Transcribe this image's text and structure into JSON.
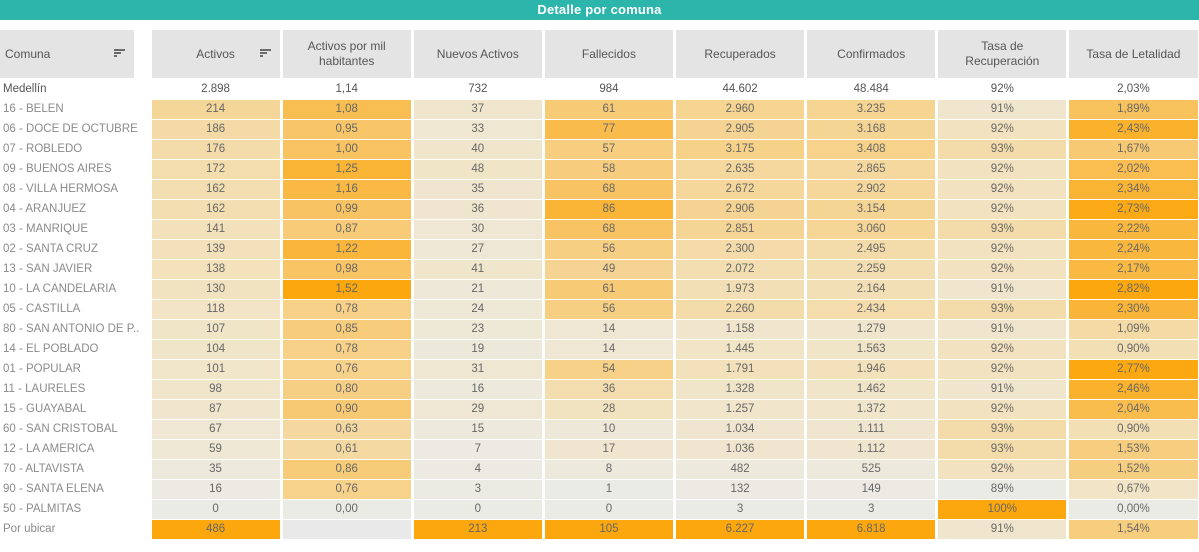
{
  "title": "Detalle por comuna",
  "colors": {
    "title_bg": "#2cb6ab",
    "title_text": "#ffffff",
    "header_bg": "#e4e4e4",
    "header_text": "#565656",
    "label_text": "#8b8b8b",
    "value_text": "#676767",
    "heat_low": "#ebebe6",
    "heat_mid": "#f6d28b",
    "heat_high": "#fba70d",
    "blank_cell": "#e9e9e9"
  },
  "table": {
    "columns": [
      {
        "label": "Comuna",
        "sortable": true
      },
      {
        "label": "Activos",
        "sortable": true
      },
      {
        "label": "Activos por mil habitantes",
        "sortable": false
      },
      {
        "label": "Nuevos Activos",
        "sortable": false
      },
      {
        "label": "Fallecidos",
        "sortable": false
      },
      {
        "label": "Recuperados",
        "sortable": false
      },
      {
        "label": "Confirmados",
        "sortable": false
      },
      {
        "label": "Tasa de Recuperación",
        "sortable": false
      },
      {
        "label": "Tasa de Letalidad",
        "sortable": false
      }
    ],
    "total_row": {
      "label": "Medellín",
      "cells": [
        "2.898",
        "1,14",
        "732",
        "984",
        "44.602",
        "48.484",
        "92%",
        "2,03%"
      ]
    },
    "rows": [
      {
        "label": "16 - BELEN",
        "cells": [
          "214",
          "1,08",
          "37",
          "61",
          "2.960",
          "3.235",
          "91%",
          "1,89%"
        ]
      },
      {
        "label": "06 - DOCE DE OCTUBRE",
        "cells": [
          "186",
          "0,95",
          "33",
          "77",
          "2.905",
          "3.168",
          "92%",
          "2,43%"
        ]
      },
      {
        "label": "07 - ROBLEDO",
        "cells": [
          "176",
          "1,00",
          "40",
          "57",
          "3.175",
          "3.408",
          "93%",
          "1,67%"
        ]
      },
      {
        "label": "09 - BUENOS AIRES",
        "cells": [
          "172",
          "1,25",
          "48",
          "58",
          "2.635",
          "2.865",
          "92%",
          "2,02%"
        ]
      },
      {
        "label": "08 - VILLA HERMOSA",
        "cells": [
          "162",
          "1,16",
          "35",
          "68",
          "2.672",
          "2.902",
          "92%",
          "2,34%"
        ]
      },
      {
        "label": "04 - ARANJUEZ",
        "cells": [
          "162",
          "0,99",
          "36",
          "86",
          "2.906",
          "3.154",
          "92%",
          "2,73%"
        ]
      },
      {
        "label": "03 - MANRIQUE",
        "cells": [
          "141",
          "0,87",
          "30",
          "68",
          "2.851",
          "3.060",
          "93%",
          "2,22%"
        ]
      },
      {
        "label": "02 - SANTA CRUZ",
        "cells": [
          "139",
          "1,22",
          "27",
          "56",
          "2.300",
          "2.495",
          "92%",
          "2,24%"
        ]
      },
      {
        "label": "13 - SAN JAVIER",
        "cells": [
          "138",
          "0,98",
          "41",
          "49",
          "2.072",
          "2.259",
          "92%",
          "2,17%"
        ]
      },
      {
        "label": "10 - LA CANDELARIA",
        "cells": [
          "130",
          "1,52",
          "21",
          "61",
          "1.973",
          "2.164",
          "91%",
          "2,82%"
        ]
      },
      {
        "label": "05 - CASTILLA",
        "cells": [
          "118",
          "0,78",
          "24",
          "56",
          "2.260",
          "2.434",
          "93%",
          "2,30%"
        ]
      },
      {
        "label": "80 - SAN ANTONIO DE P..",
        "cells": [
          "107",
          "0,85",
          "23",
          "14",
          "1.158",
          "1.279",
          "91%",
          "1,09%"
        ]
      },
      {
        "label": "14 - EL POBLADO",
        "cells": [
          "104",
          "0,78",
          "19",
          "14",
          "1.445",
          "1.563",
          "92%",
          "0,90%"
        ]
      },
      {
        "label": "01 - POPULAR",
        "cells": [
          "101",
          "0,76",
          "31",
          "54",
          "1.791",
          "1.946",
          "92%",
          "2,77%"
        ]
      },
      {
        "label": "11 - LAURELES",
        "cells": [
          "98",
          "0,80",
          "16",
          "36",
          "1.328",
          "1.462",
          "91%",
          "2,46%"
        ]
      },
      {
        "label": "15 - GUAYABAL",
        "cells": [
          "87",
          "0,90",
          "29",
          "28",
          "1.257",
          "1.372",
          "92%",
          "2,04%"
        ]
      },
      {
        "label": "60 - SAN CRISTOBAL",
        "cells": [
          "67",
          "0,63",
          "15",
          "10",
          "1.034",
          "1.111",
          "93%",
          "0,90%"
        ]
      },
      {
        "label": "12 - LA AMERICA",
        "cells": [
          "59",
          "0,61",
          "7",
          "17",
          "1.036",
          "1.112",
          "93%",
          "1,53%"
        ]
      },
      {
        "label": "70 - ALTAVISTA",
        "cells": [
          "35",
          "0,86",
          "4",
          "8",
          "482",
          "525",
          "92%",
          "1,52%"
        ]
      },
      {
        "label": "90 - SANTA ELENA",
        "cells": [
          "16",
          "0,76",
          "3",
          "1",
          "132",
          "149",
          "89%",
          "0,67%"
        ]
      },
      {
        "label": "50 - PALMITAS",
        "cells": [
          "0",
          "0,00",
          "0",
          "0",
          "3",
          "3",
          "100%",
          "0,00%"
        ]
      },
      {
        "label": "Por ubicar",
        "cells": [
          "486",
          "",
          "213",
          "105",
          "6.227",
          "6.818",
          "91%",
          "1,54%"
        ]
      }
    ]
  }
}
